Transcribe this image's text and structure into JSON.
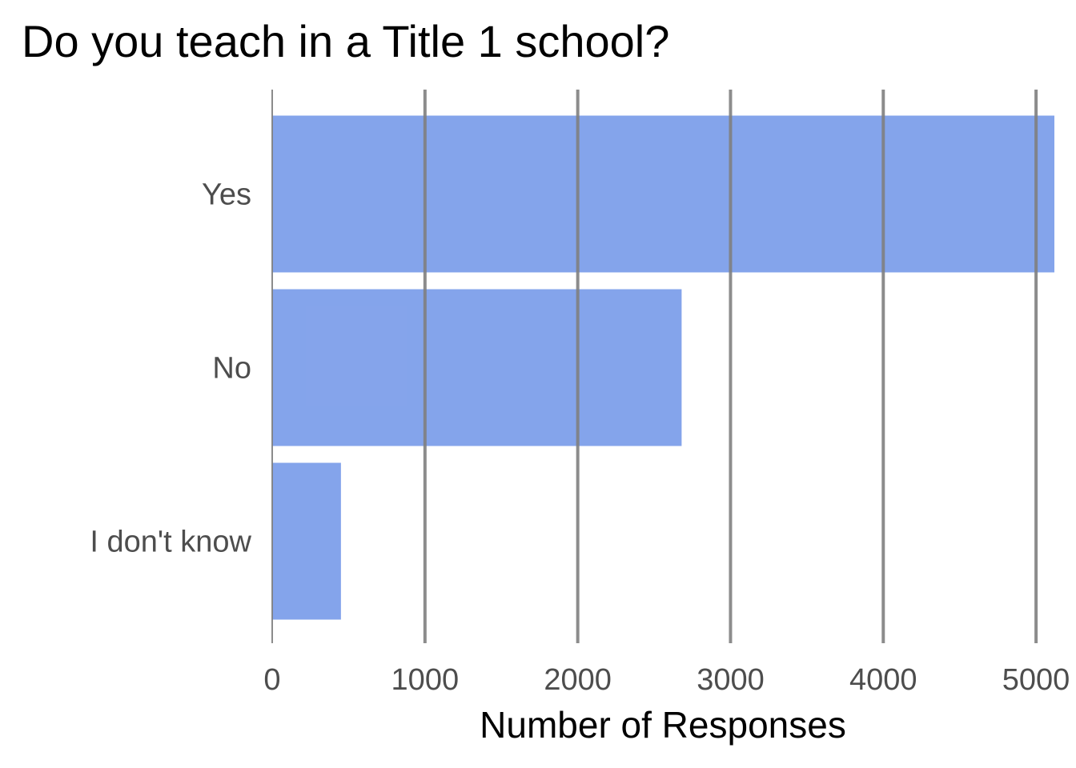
{
  "chart_data": {
    "type": "bar",
    "orientation": "horizontal",
    "title": "Do you teach in a Title 1 school?",
    "xlabel": "Number of Responses",
    "ylabel": "",
    "categories": [
      "Yes",
      "No",
      "I don't know"
    ],
    "values": [
      5120,
      2680,
      450
    ],
    "xlim": [
      0,
      5120
    ],
    "xticks": [
      0,
      1000,
      2000,
      3000,
      4000,
      5000
    ],
    "grid": "vertical major lines",
    "legend": "none",
    "colors": {
      "bar": "#6f94e8",
      "grid": "#808080",
      "tick_text": "#4d4d4d",
      "title_text": "#000000"
    }
  }
}
